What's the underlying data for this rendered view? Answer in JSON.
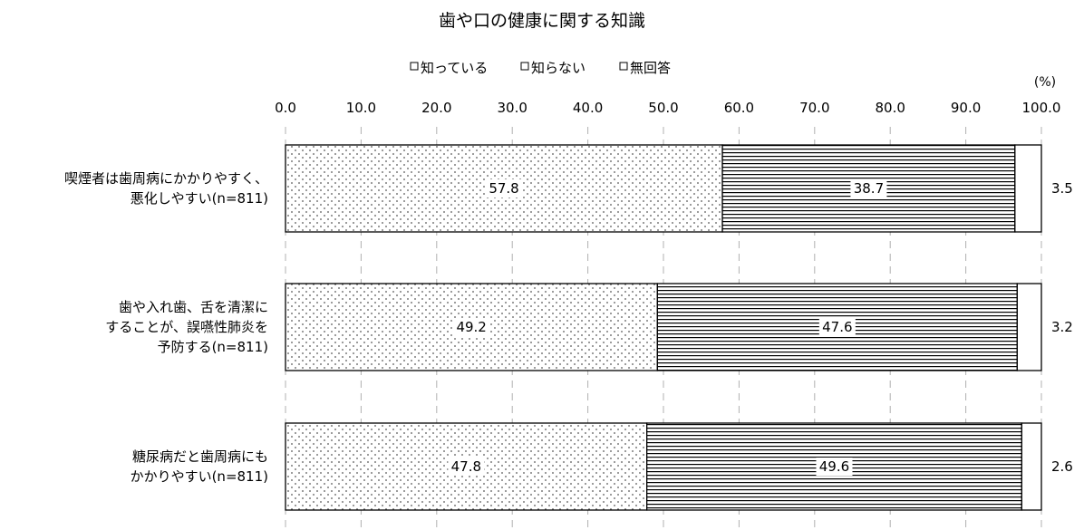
{
  "chart_data": {
    "type": "bar",
    "orientation": "horizontal",
    "stacked": true,
    "title": "歯や口の健康に関する知識",
    "unit_label": "(%)",
    "xlim": [
      0,
      100
    ],
    "xticks": [
      "0.0",
      "10.0",
      "20.0",
      "30.0",
      "40.0",
      "50.0",
      "60.0",
      "70.0",
      "80.0",
      "90.0",
      "100.0"
    ],
    "grid": "vertical dashed",
    "legend_position": "top",
    "categories": [
      [
        "喫煙者は歯周病にかかりやすく、",
        "悪化しやすい(n=811)"
      ],
      [
        "歯や入れ歯、舌を清潔に",
        "することが、誤嚥性肺炎を",
        "予防する(n=811)"
      ],
      [
        "糖尿病だと歯周病にも",
        "かかりやすい(n=811)"
      ]
    ],
    "series": [
      {
        "name": "知っている",
        "pattern": "dots",
        "values": [
          57.8,
          49.2,
          47.8
        ],
        "labels": [
          "57.8",
          "49.2",
          "47.8"
        ]
      },
      {
        "name": "知らない",
        "pattern": "horizontal",
        "values": [
          38.7,
          47.6,
          49.6
        ],
        "labels": [
          "38.7",
          "47.6",
          "49.6"
        ]
      },
      {
        "name": "無回答",
        "pattern": "white",
        "values": [
          3.5,
          3.2,
          2.6
        ],
        "labels": [
          "3.5",
          "3.2",
          "2.6"
        ]
      }
    ]
  }
}
